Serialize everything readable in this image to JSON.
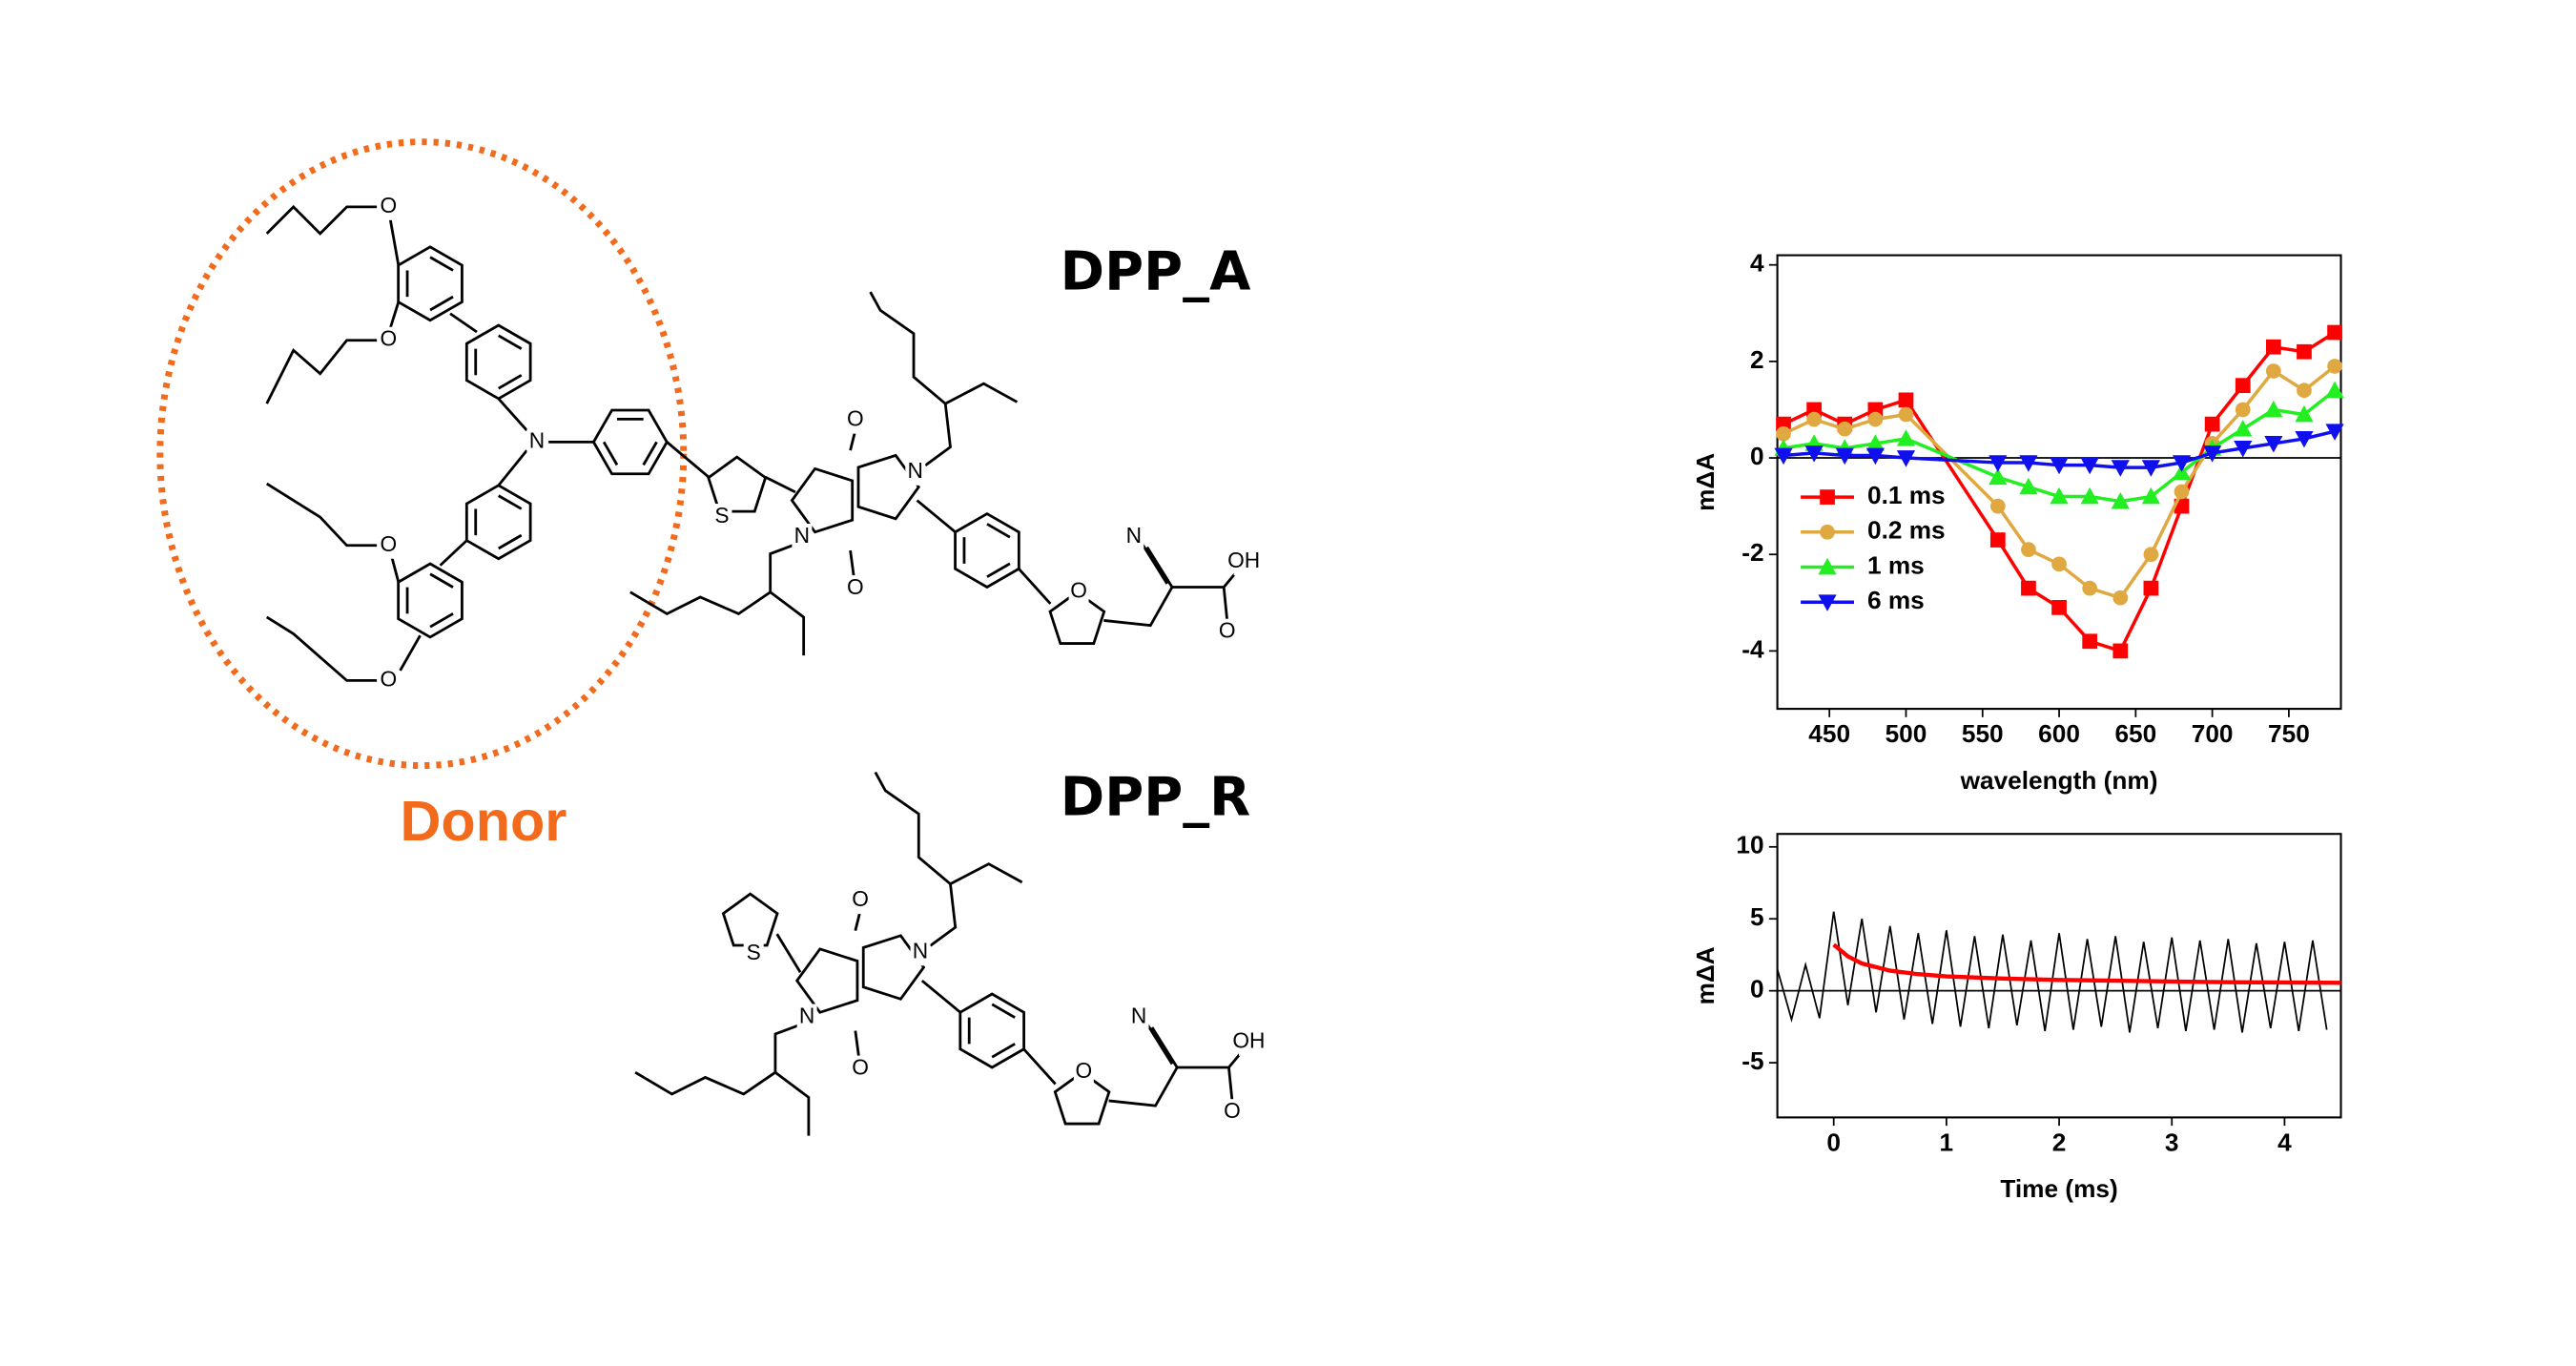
{
  "figure": {
    "donor_label": "Donor",
    "molecules": [
      {
        "name": "DPP_A",
        "atoms": [
          "O",
          "O",
          "N",
          "O",
          "O",
          "S",
          "O",
          "N",
          "N",
          "O",
          "N",
          "OH",
          "O",
          "O"
        ]
      },
      {
        "name": "DPP_R",
        "atoms": [
          "S",
          "O",
          "N",
          "N",
          "O",
          "N",
          "OH",
          "O",
          "O"
        ]
      }
    ]
  },
  "chart_data": [
    {
      "type": "line",
      "xlabel": "wavelength (nm)",
      "ylabel": "mΔA",
      "x": [
        420,
        440,
        460,
        480,
        500,
        560,
        580,
        600,
        620,
        640,
        660,
        680,
        700,
        720,
        740,
        760,
        780
      ],
      "xlim": [
        416,
        784
      ],
      "xticks": [
        450,
        500,
        550,
        600,
        650,
        700,
        750
      ],
      "ylim": [
        -5.2,
        4.2
      ],
      "yticks": [
        -4,
        -2,
        0,
        2,
        4
      ],
      "zero_line": true,
      "legend": "lower-left",
      "series": [
        {
          "name": "0.1 ms",
          "color": "#ff0000",
          "marker": "square",
          "values": [
            0.7,
            1.0,
            0.7,
            1.0,
            1.2,
            -1.7,
            -2.7,
            -3.1,
            -3.8,
            -4.0,
            -2.7,
            -1.0,
            0.7,
            1.5,
            2.3,
            2.2,
            2.6
          ]
        },
        {
          "name": "0.2 ms",
          "color": "#e0a840",
          "marker": "circle",
          "values": [
            0.5,
            0.8,
            0.6,
            0.8,
            0.9,
            -1.0,
            -1.9,
            -2.2,
            -2.7,
            -2.9,
            -2.0,
            -0.7,
            0.3,
            1.0,
            1.8,
            1.4,
            1.9
          ]
        },
        {
          "name": "1 ms",
          "color": "#22ee22",
          "marker": "triangle-up",
          "values": [
            0.2,
            0.3,
            0.2,
            0.3,
            0.4,
            -0.4,
            -0.6,
            -0.8,
            -0.8,
            -0.9,
            -0.8,
            -0.3,
            0.2,
            0.6,
            1.0,
            0.9,
            1.4
          ]
        },
        {
          "name": "6 ms",
          "color": "#1010ee",
          "marker": "triangle-down",
          "values": [
            0.05,
            0.1,
            0.05,
            0.05,
            0.0,
            -0.1,
            -0.1,
            -0.15,
            -0.15,
            -0.2,
            -0.2,
            -0.1,
            0.1,
            0.2,
            0.3,
            0.4,
            0.55
          ]
        }
      ]
    },
    {
      "type": "line",
      "xlabel": "Time (ms)",
      "ylabel": "mΔA",
      "xlim": [
        -0.5,
        4.5
      ],
      "xticks": [
        0,
        1,
        2,
        3,
        4
      ],
      "ylim": [
        -8.8,
        10.9
      ],
      "yticks": [
        -5,
        0,
        5,
        10
      ],
      "zero_line": true,
      "series": [
        {
          "color": "#000000",
          "line_width": 1,
          "x": [
            -0.5,
            -0.375,
            -0.25,
            -0.125,
            0,
            0.125,
            0.25,
            0.375,
            0.5,
            0.625,
            0.75,
            0.875,
            1,
            1.125,
            1.25,
            1.375,
            1.5,
            1.625,
            1.75,
            1.875,
            2,
            2.125,
            2.25,
            2.375,
            2.5,
            2.625,
            2.75,
            2.875,
            3,
            3.125,
            3.25,
            3.375,
            3.5,
            3.625,
            3.75,
            3.875,
            4,
            4.125,
            4.25,
            4.375
          ],
          "values": [
            1.5,
            -2,
            1.8,
            -1.9,
            5.5,
            -1,
            5,
            -1.5,
            4.5,
            -2,
            4,
            -2.3,
            4.2,
            -2.5,
            3.8,
            -2.6,
            3.9,
            -2.4,
            3.5,
            -2.8,
            4,
            -2.7,
            3.6,
            -2.5,
            3.8,
            -2.9,
            3.4,
            -2.6,
            3.7,
            -2.8,
            3.5,
            -2.7,
            3.6,
            -2.9,
            3.3,
            -2.6,
            3.4,
            -2.8,
            3.5,
            -2.7
          ]
        },
        {
          "color": "#ff0000",
          "line_width": 2.5,
          "x": [
            0,
            0.125,
            0.25,
            0.5,
            0.75,
            1,
            1.5,
            2,
            2.5,
            3,
            3.5,
            4,
            4.5
          ],
          "values": [
            3.2,
            2.4,
            1.9,
            1.4,
            1.15,
            1.0,
            0.85,
            0.75,
            0.7,
            0.65,
            0.6,
            0.58,
            0.55
          ]
        }
      ]
    }
  ]
}
